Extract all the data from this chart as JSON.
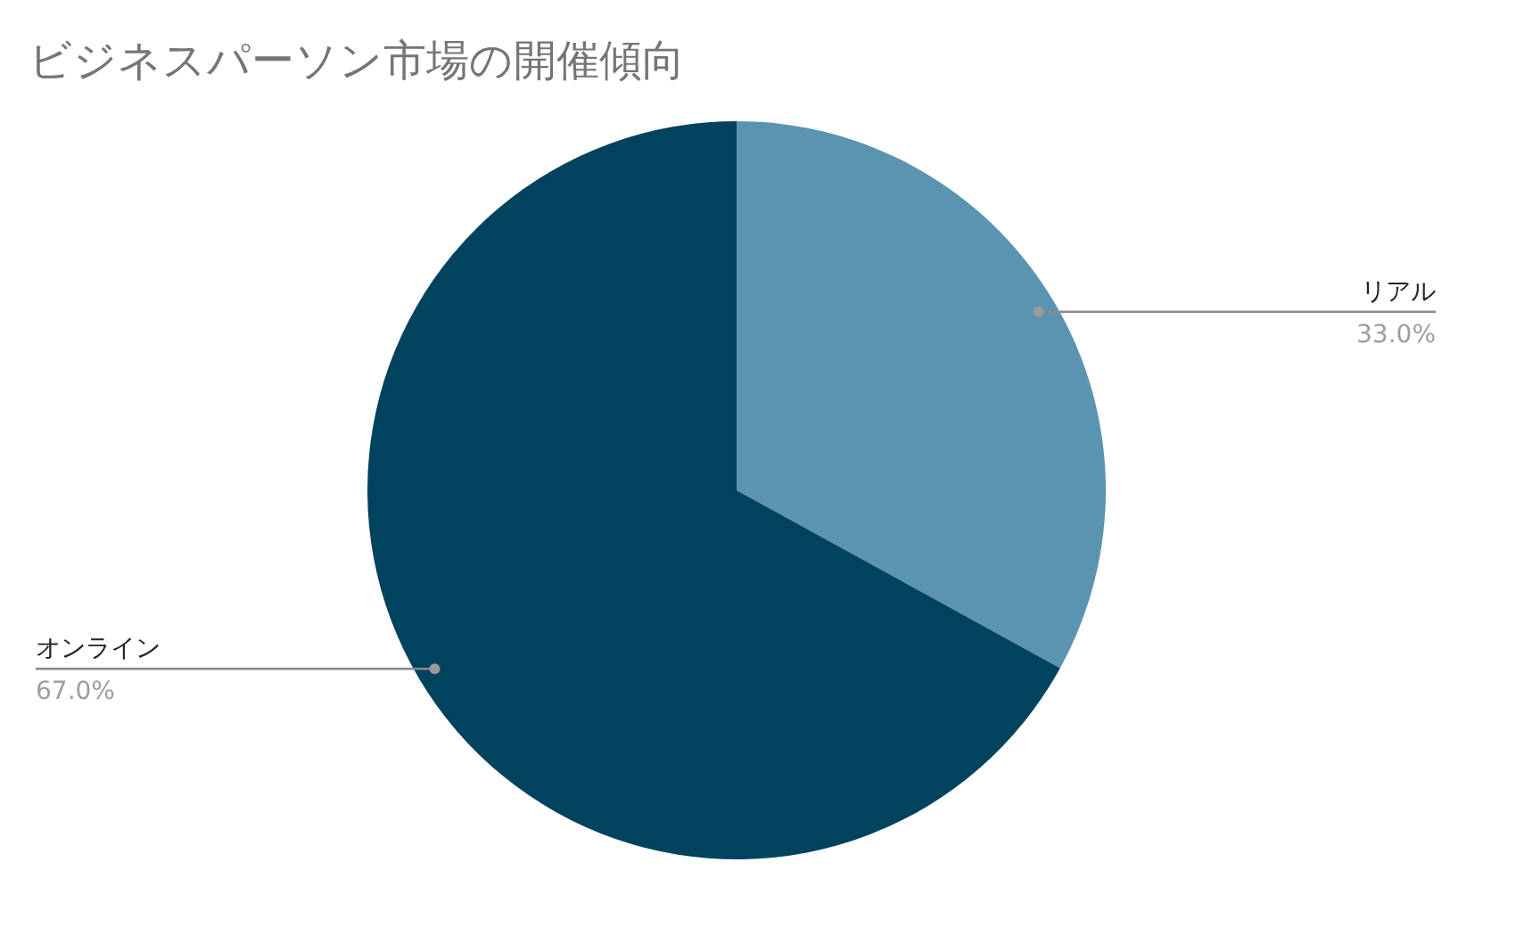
{
  "chart_data": {
    "type": "pie",
    "title": "ビジネスパーソン市場の開催傾向",
    "categories": [
      "リアル",
      "オンライン"
    ],
    "values": [
      33.0,
      67.0
    ],
    "colors": [
      "#5a94b1",
      "#01425e"
    ],
    "value_labels": [
      "33.0%",
      "67.0%"
    ]
  }
}
